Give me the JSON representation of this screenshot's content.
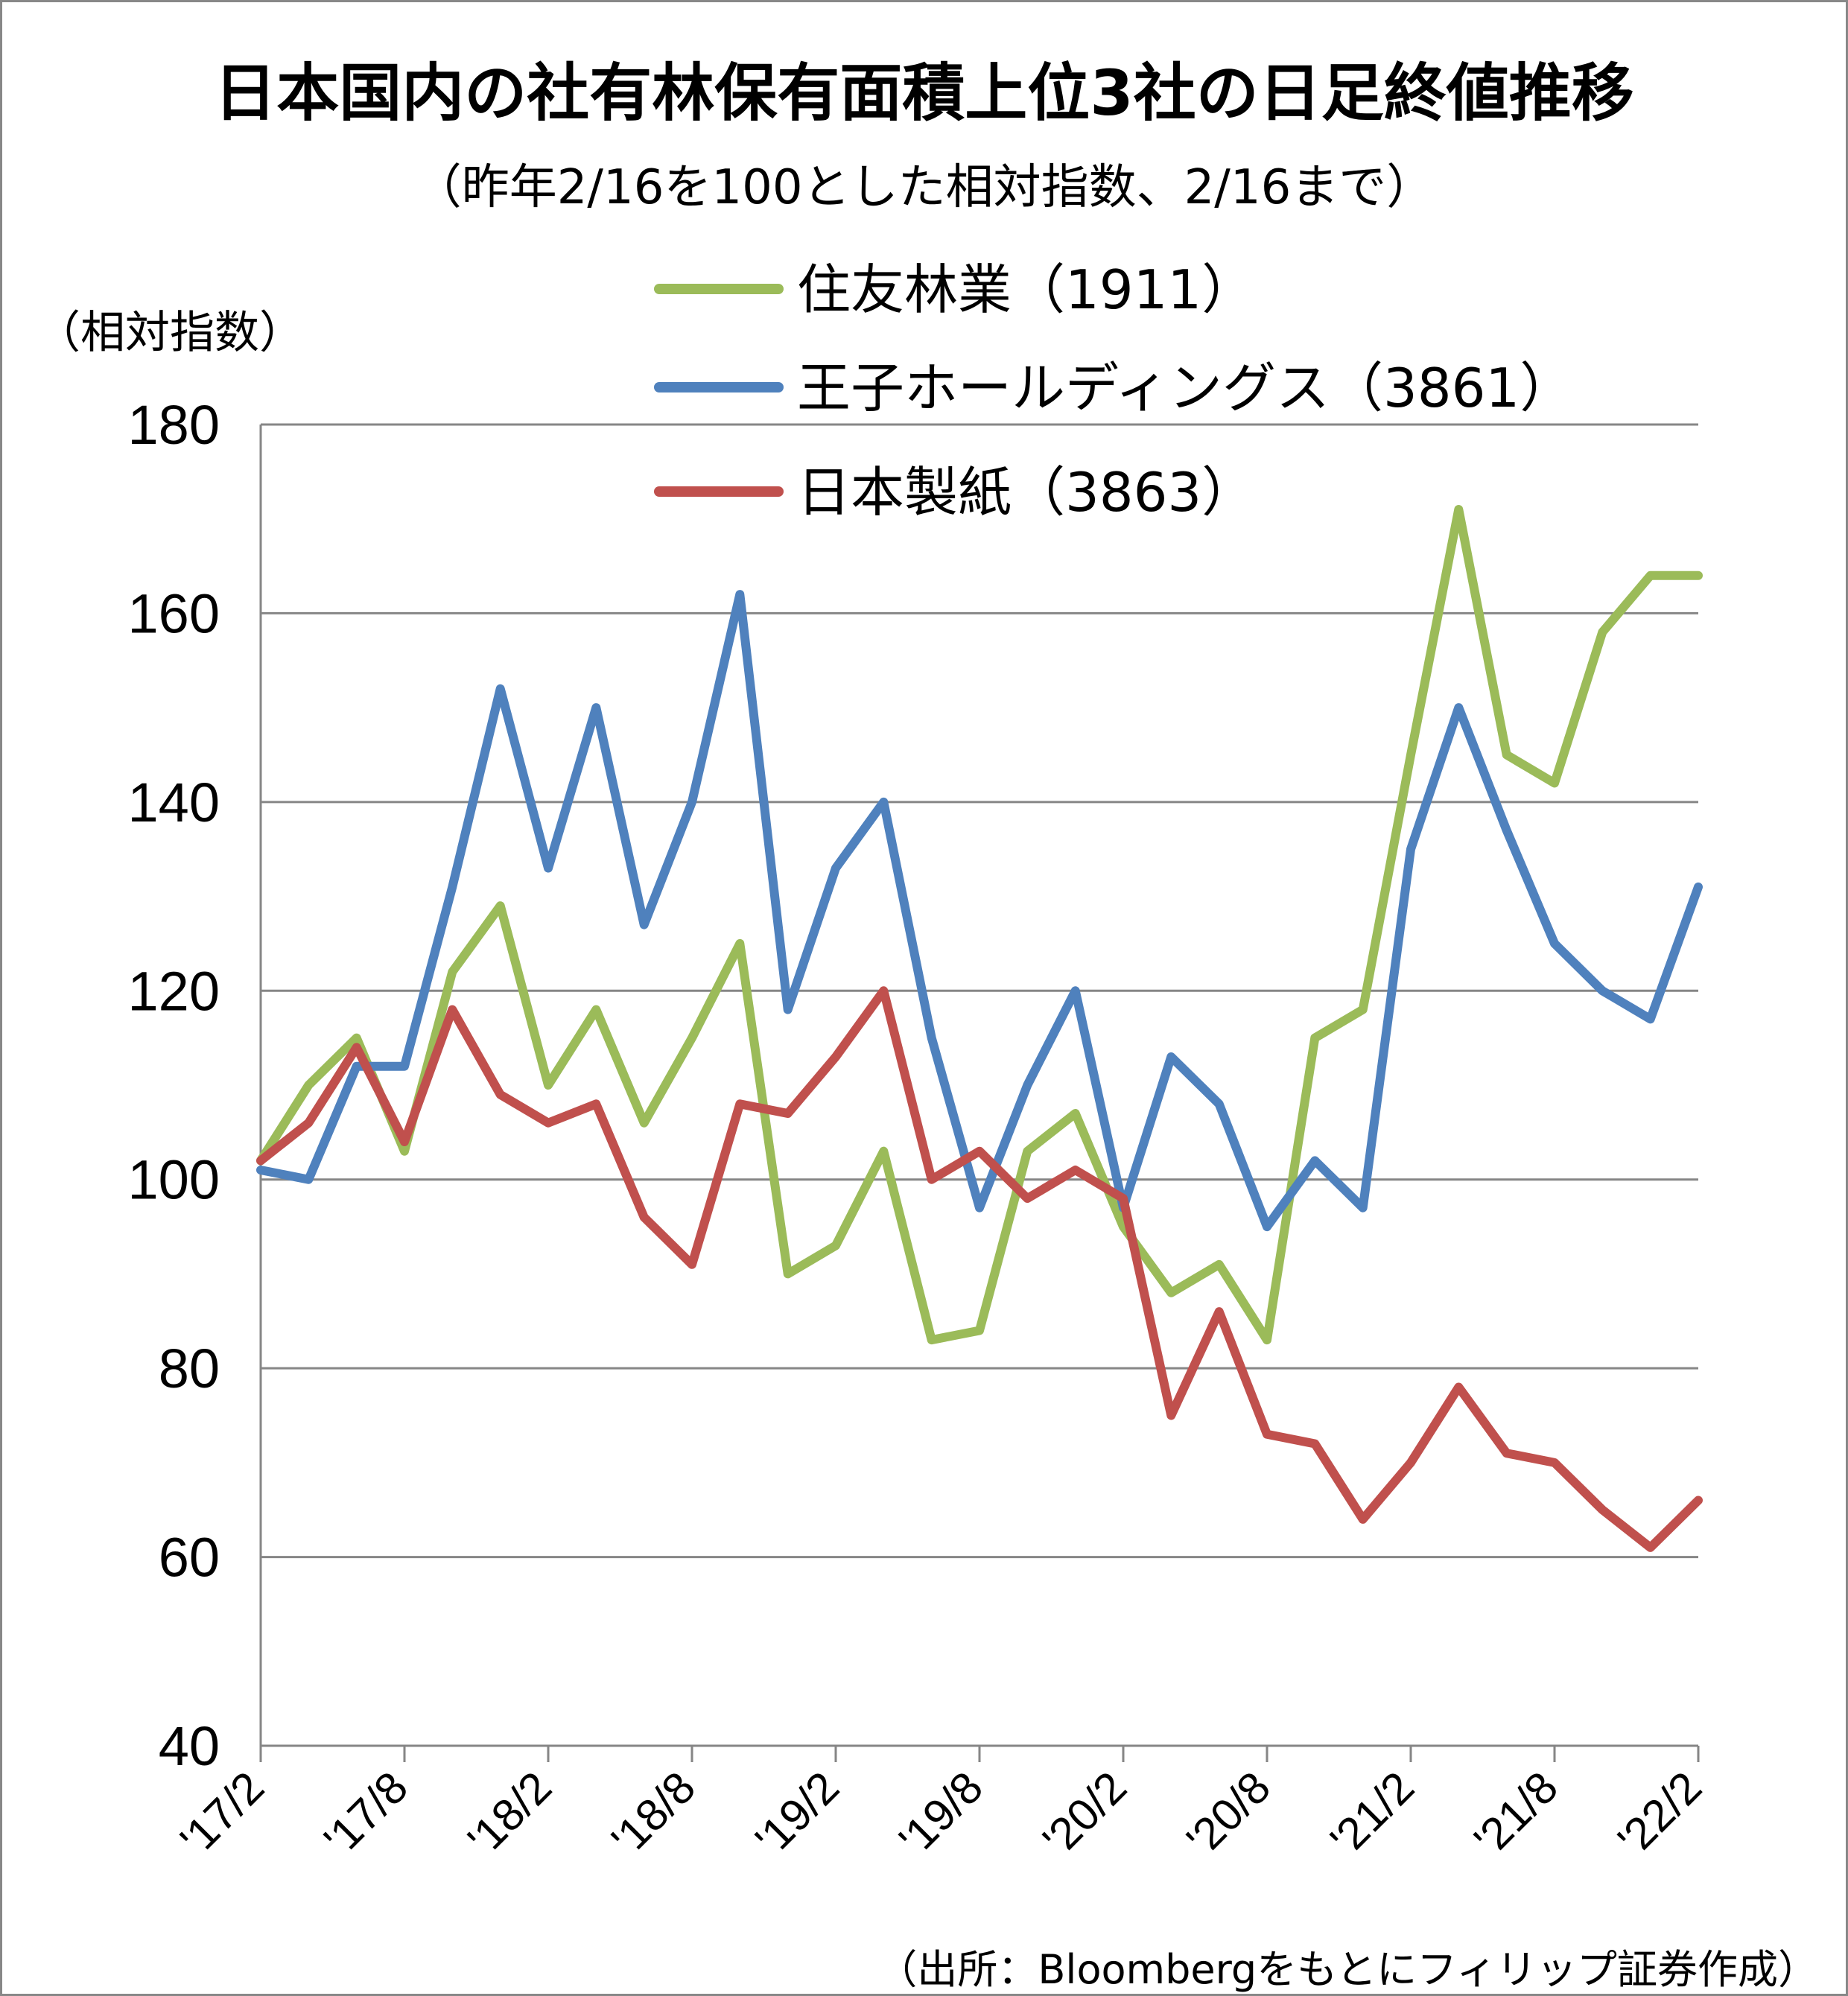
{
  "chart_data": {
    "type": "line",
    "title": "日本国内の社有林保有面積上位3社の日足終値推移",
    "subtitle": "（昨年2/16を100とした相対指数、2/16まで）",
    "ylabel": "（相対指数）",
    "xlabel": "",
    "source": "（出所：Bloombergをもとにフィリップ証券作成）",
    "ylim": [
      40,
      180
    ],
    "yticks": [
      "40",
      "60",
      "80",
      "100",
      "120",
      "140",
      "160",
      "180"
    ],
    "categories": [
      "'17/2",
      "'17/8",
      "'18/2",
      "'18/8",
      "'19/2",
      "'19/8",
      "'20/2",
      "'20/8",
      "'21/2",
      "'21/8",
      "'22/2"
    ],
    "x": [
      "2017-02",
      "2017-04",
      "2017-06",
      "2017-08",
      "2017-10",
      "2017-12",
      "2018-02",
      "2018-04",
      "2018-06",
      "2018-08",
      "2018-10",
      "2018-12",
      "2019-02",
      "2019-04",
      "2019-06",
      "2019-08",
      "2019-10",
      "2019-12",
      "2020-02",
      "2020-04",
      "2020-06",
      "2020-08",
      "2020-10",
      "2020-12",
      "2021-02",
      "2021-04",
      "2021-06",
      "2021-08",
      "2021-10",
      "2021-12",
      "2022-02"
    ],
    "grid": true,
    "legend_position": "top-center",
    "series": [
      {
        "name": "住友林業（1911）",
        "color": "#9bbb59",
        "values": [
          102,
          110,
          115,
          103,
          122,
          129,
          110,
          118,
          106,
          115,
          125,
          90,
          93,
          103,
          83,
          84,
          103,
          107,
          95,
          88,
          91,
          83,
          115,
          118,
          145,
          171,
          145,
          142,
          158,
          164,
          164
        ]
      },
      {
        "name": "王子ホールディングス（3861）",
        "color": "#4f81bd",
        "values": [
          101,
          100,
          112,
          112,
          131,
          152,
          133,
          150,
          127,
          140,
          162,
          118,
          133,
          140,
          115,
          97,
          110,
          120,
          97,
          113,
          108,
          95,
          102,
          97,
          135,
          150,
          137,
          125,
          120,
          117,
          131
        ]
      },
      {
        "name": "日本製紙（3863）",
        "color": "#c0504d",
        "values": [
          102,
          106,
          114,
          104,
          118,
          109,
          106,
          108,
          96,
          91,
          108,
          107,
          113,
          120,
          100,
          103,
          98,
          101,
          98,
          75,
          86,
          73,
          72,
          64,
          70,
          78,
          71,
          70,
          65,
          61,
          66
        ]
      }
    ]
  }
}
